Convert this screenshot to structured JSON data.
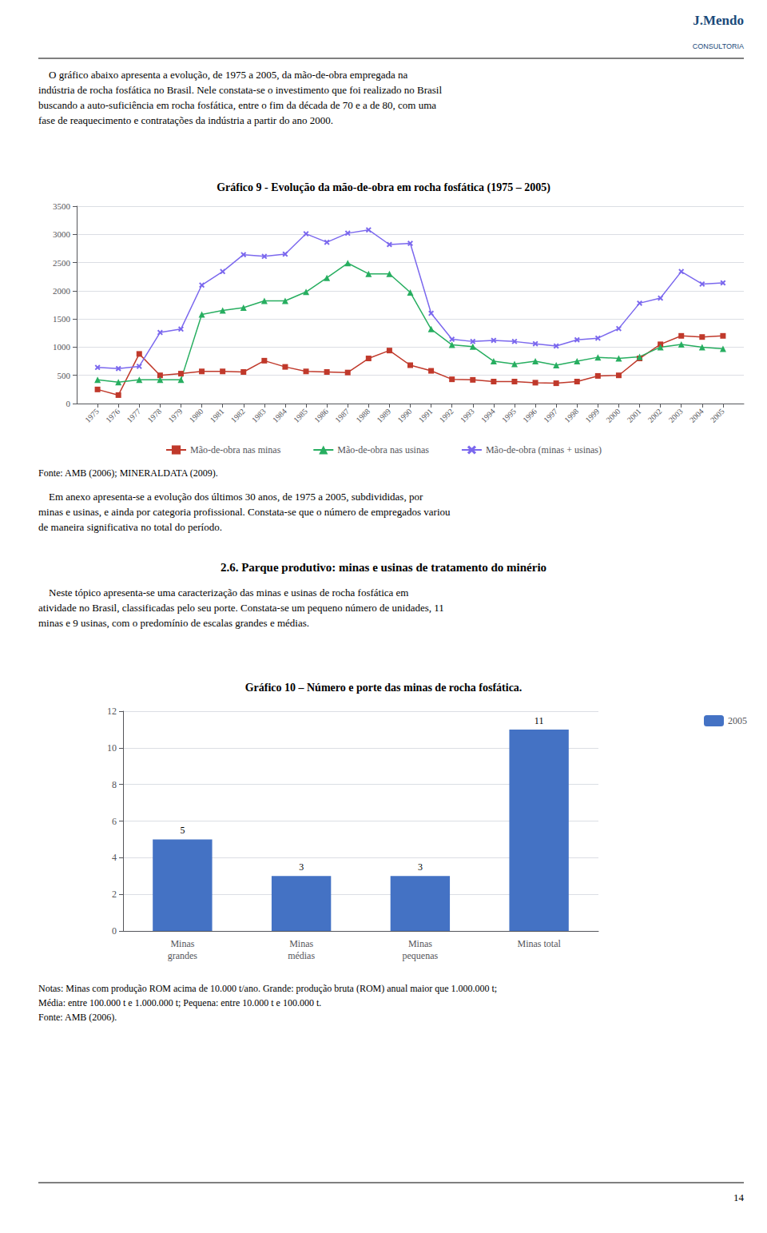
{
  "chart_data": [
    {
      "type": "line",
      "title": "Gráfico 9 - Evolução da mão-de-obra em rocha fosfática (1975 – 2005)",
      "x": [
        1975,
        1976,
        1977,
        1978,
        1979,
        1980,
        1981,
        1982,
        1983,
        1984,
        1985,
        1986,
        1987,
        1988,
        1989,
        1990,
        1991,
        1992,
        1993,
        1994,
        1995,
        1996,
        1997,
        1998,
        1999,
        2000,
        2001,
        2002,
        2003,
        2004,
        2005
      ],
      "series": [
        {
          "name": "Mão-de-obra nas minas",
          "color": "#c0392b",
          "marker": "square",
          "values": [
            250,
            150,
            880,
            500,
            530,
            570,
            570,
            560,
            760,
            650,
            570,
            560,
            550,
            800,
            940,
            680,
            580,
            430,
            420,
            390,
            390,
            370,
            360,
            390,
            490,
            500,
            800,
            1050,
            1200,
            1180,
            1200
          ]
        },
        {
          "name": "Mão-de-obra nas usinas",
          "color": "#27ae60",
          "marker": "triangle",
          "values": [
            420,
            380,
            420,
            420,
            420,
            1580,
            1650,
            1700,
            1820,
            1820,
            1980,
            2230,
            2490,
            2300,
            2300,
            1970,
            1320,
            1040,
            1010,
            750,
            700,
            750,
            680,
            750,
            820,
            800,
            830,
            1000,
            1050,
            1000,
            970
          ]
        },
        {
          "name": "Mão-de-obra (minas + usinas)",
          "color": "#7b68ee",
          "marker": "x",
          "values": [
            640,
            620,
            660,
            1260,
            1320,
            2100,
            2340,
            2640,
            2610,
            2650,
            3010,
            2860,
            3020,
            3080,
            2820,
            2840,
            1600,
            1140,
            1100,
            1120,
            1100,
            1060,
            1020,
            1130,
            1160,
            1330,
            1780,
            1870,
            2340,
            2120,
            2140
          ]
        }
      ],
      "xlim": [
        1974,
        2006
      ],
      "xticks": [
        1975,
        1976,
        1977,
        1978,
        1979,
        1980,
        1981,
        1982,
        1983,
        1984,
        1985,
        1986,
        1987,
        1988,
        1989,
        1990,
        1991,
        1992,
        1993,
        1994,
        1995,
        1996,
        1997,
        1998,
        1999,
        2000,
        2001,
        2002,
        2003,
        2004,
        2005
      ],
      "ylim": [
        0,
        3500
      ],
      "yticks": [
        0,
        500,
        1000,
        1500,
        2000,
        2500,
        3000,
        3500
      ],
      "grid": true,
      "legend": "bottom",
      "annotations": [
        "J.Mendo",
        "CONSULTORIA",
        "    O gráfico abaixo apresenta a evolução, de 1975 a 2005, da mão-de-obra empregada na\nindústria de rocha fosfática no Brasil. Nele constata-se o investimento que foi realizado no Brasil\nbuscando a auto-suficiência em rocha fosfática, entre o fim da década de 70 e a de 80, com uma\nfase de reaquecimento e contratações da indústria a partir do ano 2000.",
        "Fonte: AMB (2006); MINERALDATA (2009).",
        "    Em anexo apresenta-se a evolução dos últimos 30 anos, de 1975 a 2005, subdivididas, por\nminas e usinas, e ainda por categoria profissional. Constata-se que o número de empregados variou\nde maneira significativa no total do período.",
        "2.6. Parque produtivo: minas e usinas de tratamento do minério",
        "    Neste tópico apresenta-se uma caracterização das minas e usinas de rocha fosfática em\natividade no Brasil, classificadas pelo seu porte. Constata-se um pequeno número de unidades, 11\nminas e 9 usinas, com o predomínio de escalas grandes e médias."
      ]
    },
    {
      "type": "bar",
      "title": "Gráfico 10 – Número e porte das minas de rocha fosfática.",
      "categories": [
        "Minas\ngrandes",
        "Minas\nmédias",
        "Minas\npequenas",
        "Minas total"
      ],
      "series": [
        {
          "name": "2005",
          "color": "#4472c4",
          "values": [
            5,
            3,
            3,
            11
          ]
        }
      ],
      "ylim": [
        0,
        12
      ],
      "yticks": [
        0,
        2,
        4,
        6,
        8,
        10,
        12
      ],
      "grid": true,
      "legend": "upper right",
      "data_labels": true,
      "annotations": [
        "Notas: Minas com produção ROM acima de 10.000 t/ano. Grande: produção bruta (ROM) anual maior que 1.000.000 t;\nMédia: entre 100.000 t e 1.000.000 t; Pequena: entre 10.000 t e 100.000 t.\nFonte: AMB (2006).",
        "14"
      ]
    }
  ]
}
